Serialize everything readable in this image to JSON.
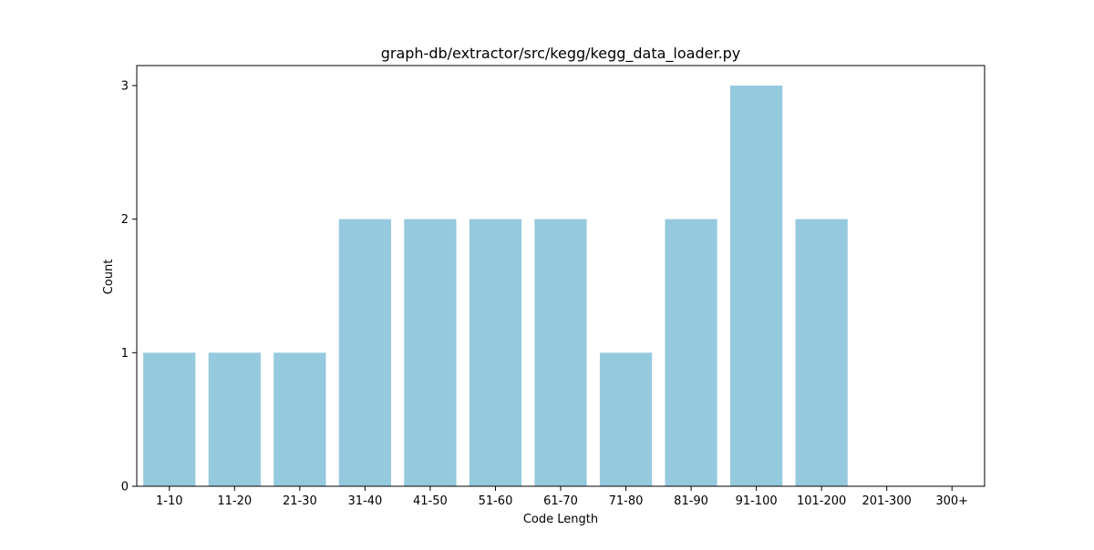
{
  "chart_data": {
    "type": "bar",
    "title": "graph-db/extractor/src/kegg/kegg_data_loader.py",
    "xlabel": "Code Length",
    "ylabel": "Count",
    "categories": [
      "1-10",
      "11-20",
      "21-30",
      "31-40",
      "41-50",
      "51-60",
      "61-70",
      "71-80",
      "81-90",
      "91-100",
      "101-200",
      "201-300",
      "300+"
    ],
    "values": [
      1,
      1,
      1,
      2,
      2,
      2,
      2,
      1,
      2,
      3,
      2,
      0,
      0
    ],
    "ylim": [
      0,
      3.15
    ],
    "yticks": [
      0,
      1,
      2,
      3
    ],
    "grid": false,
    "legend": "none",
    "bar_color": "#95c9de",
    "axis_color": "#000000"
  }
}
